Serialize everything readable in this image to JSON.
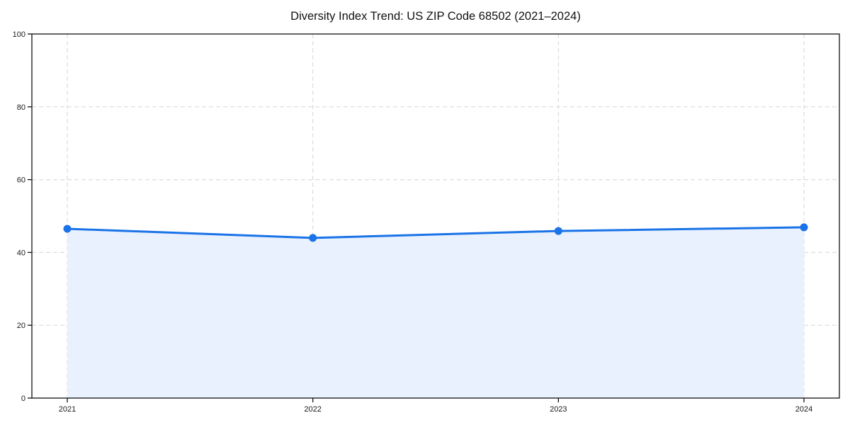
{
  "chart_data": {
    "type": "line",
    "title": "Diversity Index Trend: US ZIP Code 68502 (2021–2024)",
    "x": [
      "2021",
      "2022",
      "2023",
      "2024"
    ],
    "series": [
      {
        "name": "Diversity Index",
        "values": [
          46.5,
          44.0,
          45.9,
          46.9
        ]
      }
    ],
    "xlabel": "",
    "ylabel": "",
    "ylim": [
      0,
      100
    ],
    "yticks": [
      0,
      20,
      40,
      60,
      80,
      100
    ],
    "grid": "dashed",
    "legend": "none",
    "area_fill": true,
    "markers": true
  },
  "style": {
    "line_color": "#1a73e8",
    "fill_color": "#e8f1fd",
    "grid_color": "#dcdcdc",
    "axis_color": "#111111",
    "text_color": "#1a1a1a",
    "background": "#ffffff"
  }
}
